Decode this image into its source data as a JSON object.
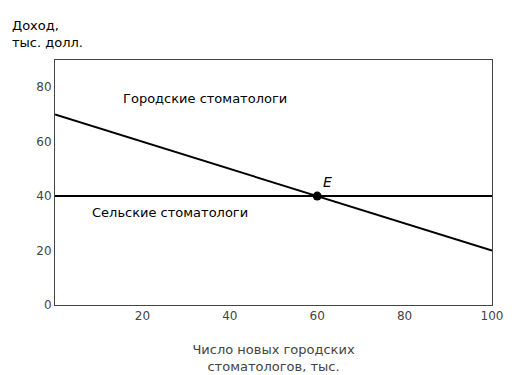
{
  "chart_data": {
    "type": "line",
    "xlabel": "Число новых городских\nстоматологов, тыс.",
    "ylabel": "Доход,\nтыс. долл.",
    "xlim": [
      0,
      100
    ],
    "ylim": [
      0,
      90
    ],
    "xticks": [
      20,
      40,
      60,
      80,
      100
    ],
    "yticks": [
      0,
      20,
      40,
      60,
      80
    ],
    "grid": false,
    "series": [
      {
        "type": "line",
        "x": [
          0,
          100
        ],
        "values": [
          70,
          20
        ],
        "color": "#000000"
      },
      {
        "type": "line",
        "x": [
          0,
          100
        ],
        "values": [
          40,
          40
        ],
        "color": "#000000"
      },
      {
        "type": "scatter",
        "marker": "circle",
        "x": [
          60
        ],
        "values": [
          40
        ],
        "color": "#000000"
      }
    ],
    "annotations": [
      {
        "text": "E",
        "x": 60,
        "y": 40
      },
      {
        "text": "Городские стоматологи",
        "x": 15,
        "y": 76
      },
      {
        "text": "Сельские стоматологи",
        "x": 8,
        "y": 34
      }
    ]
  }
}
